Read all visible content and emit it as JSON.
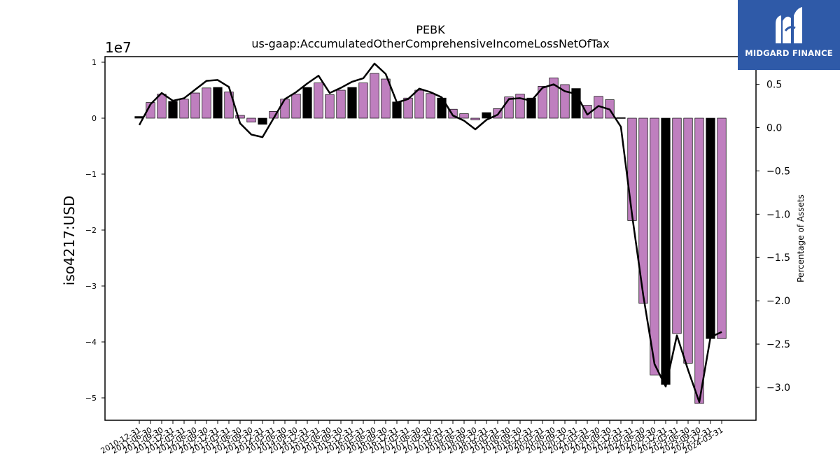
{
  "chart_data": {
    "type": "bar",
    "title": "PEBK",
    "subtitle": "us-gaap:AccumulatedOtherComprehensiveIncomeLossNetOfTax",
    "ylabel": "iso4217:USD",
    "y2label": "Percentage of Assets",
    "y_multiplier_label": "1e7",
    "ylim": [
      -5.4,
      1.1
    ],
    "y2lim": [
      -3.38,
      0.82
    ],
    "yticks": [
      1,
      0,
      -1,
      -2,
      -3,
      -4,
      -5
    ],
    "yticklabels": [
      "1",
      "0",
      "−1",
      "−2",
      "−3",
      "−4",
      "−5"
    ],
    "y2ticks": [
      0.5,
      0.0,
      -0.5,
      -1.0,
      -1.5,
      -2.0,
      -2.5,
      -3.0
    ],
    "y2ticklabels": [
      "0.5",
      "0.0",
      "−0.5",
      "−1.0",
      "−1.5",
      "−2.0",
      "−2.5",
      "−3.0"
    ],
    "grid": false,
    "colors": {
      "bar": "#bf7fbf",
      "bar_q4": "#000000",
      "line": "#000000",
      "edge": "#000000"
    },
    "categories": [
      "2010-12-31",
      "2011-06-30",
      "2011-09-30",
      "2011-12-31",
      "2012-03-31",
      "2012-06-30",
      "2012-09-30",
      "2012-12-31",
      "2013-03-31",
      "2013-06-30",
      "2013-09-30",
      "2013-12-31",
      "2014-03-31",
      "2014-06-30",
      "2014-09-30",
      "2014-12-31",
      "2015-03-31",
      "2015-06-30",
      "2015-09-30",
      "2015-12-31",
      "2016-03-31",
      "2016-06-30",
      "2016-09-30",
      "2016-12-31",
      "2017-03-31",
      "2017-06-30",
      "2017-09-30",
      "2017-12-31",
      "2018-03-31",
      "2018-06-30",
      "2018-09-30",
      "2018-12-31",
      "2019-03-31",
      "2019-06-30",
      "2019-09-30",
      "2019-12-31",
      "2020-03-31",
      "2020-06-30",
      "2020-09-30",
      "2020-12-31",
      "2021-03-31",
      "2021-06-30",
      "2021-09-30",
      "2021-12-31",
      "2022-03-31",
      "2022-06-30",
      "2022-09-30",
      "2022-12-31",
      "2023-03-31",
      "2023-06-30",
      "2023-09-30",
      "2023-12-31",
      "2024-03-31"
    ],
    "values": [
      0.03,
      0.28,
      0.43,
      0.3,
      0.34,
      0.45,
      0.54,
      0.55,
      0.47,
      0.05,
      -0.07,
      -0.11,
      0.12,
      0.34,
      0.43,
      0.55,
      0.63,
      0.42,
      0.5,
      0.55,
      0.63,
      0.8,
      0.7,
      0.29,
      0.36,
      0.5,
      0.44,
      0.36,
      0.16,
      0.08,
      -0.03,
      0.1,
      0.17,
      0.38,
      0.43,
      0.36,
      0.57,
      0.72,
      0.6,
      0.53,
      0.23,
      0.39,
      0.33,
      0.01,
      -1.83,
      -3.31,
      -4.59,
      -4.76,
      -3.85,
      -4.38,
      -5.1,
      -3.94,
      -3.94
    ],
    "highlight_black_indices": [
      0,
      3,
      7,
      11,
      15,
      19,
      23,
      27,
      31,
      35,
      39,
      43,
      47,
      51
    ],
    "series": [
      {
        "values": [
          0.03,
          0.27,
          0.4,
          0.31,
          0.34,
          0.44,
          0.54,
          0.55,
          0.47,
          0.05,
          -0.08,
          -0.11,
          0.11,
          0.33,
          0.41,
          0.51,
          0.6,
          0.4,
          0.46,
          0.53,
          0.57,
          0.74,
          0.62,
          0.29,
          0.33,
          0.45,
          0.41,
          0.35,
          0.14,
          0.08,
          -0.02,
          0.09,
          0.15,
          0.33,
          0.34,
          0.31,
          0.46,
          0.5,
          0.42,
          0.39,
          0.15,
          0.25,
          0.21,
          0.01,
          -1.01,
          -1.94,
          -2.73,
          -2.99,
          -2.4,
          -2.8,
          -3.17,
          -2.42,
          -2.36
        ]
      }
    ]
  },
  "logo": {
    "text": "MIDGARD FINANCE"
  }
}
